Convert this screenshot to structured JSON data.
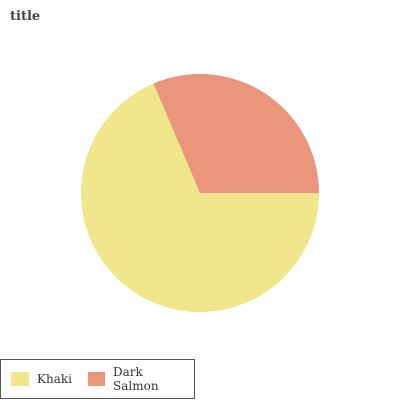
{
  "chart_data": {
    "type": "pie",
    "title": "title",
    "slices": [
      {
        "label": "Khaki",
        "value": 68.6,
        "color": "#F0E68C"
      },
      {
        "label": "Dark Salmon",
        "value": 31.4,
        "color": "#E9967A"
      }
    ],
    "legend_position": "bottom-left",
    "start_angle_deg": 0,
    "direction": "clockwise"
  }
}
